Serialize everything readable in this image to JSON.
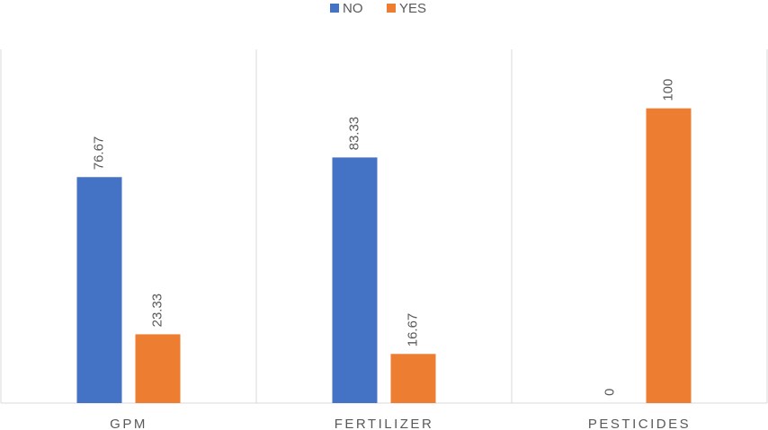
{
  "chart_data": {
    "type": "bar",
    "categories": [
      "GPM",
      "FERTILIZER",
      "PESTICIDES"
    ],
    "series": [
      {
        "name": "NO",
        "color": "#4472c4",
        "values": [
          76.67,
          83.33,
          0
        ]
      },
      {
        "name": "YES",
        "color": "#ed7d31",
        "values": [
          23.33,
          16.67,
          100
        ]
      }
    ],
    "ylim": [
      0,
      120
    ],
    "legend": "top"
  }
}
